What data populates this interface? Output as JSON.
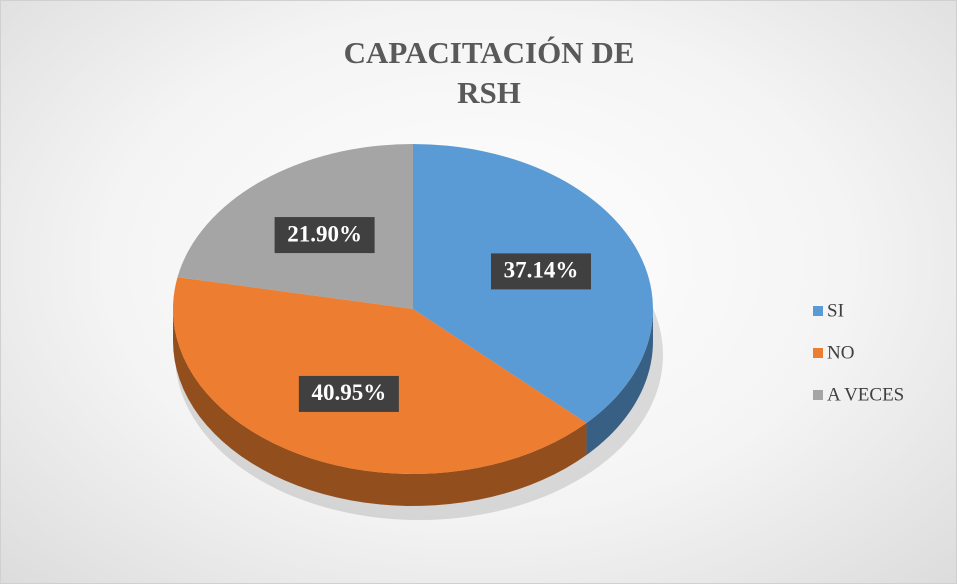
{
  "chart_data": {
    "type": "pie",
    "title": "CAPACITACIÓN DE RSH",
    "categories": [
      "SI",
      "NO",
      "A VECES"
    ],
    "values": [
      37.14,
      40.95,
      21.9
    ],
    "value_labels": [
      "37.14%",
      "40.95%",
      "21.90%"
    ],
    "colors": [
      "#5b9bd5",
      "#ed7d31",
      "#a5a5a5"
    ],
    "legend": "right"
  }
}
